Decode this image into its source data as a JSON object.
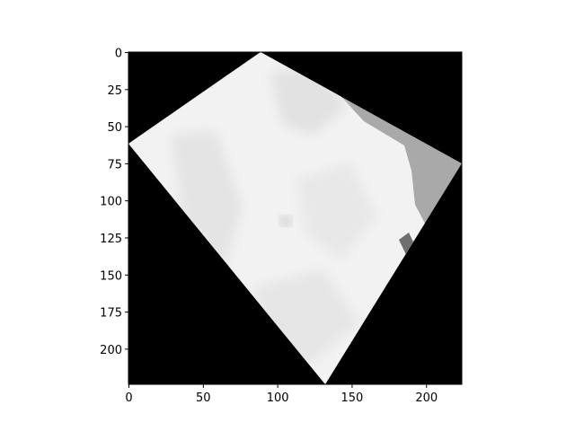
{
  "chart_data": {
    "type": "heatmap",
    "title": "",
    "xlabel": "",
    "ylabel": "",
    "xlim": [
      0,
      224
    ],
    "ylim": [
      224,
      0
    ],
    "grid": false,
    "colormap": "gray",
    "x_ticks": [
      0,
      50,
      100,
      150,
      200
    ],
    "y_ticks": [
      0,
      25,
      50,
      75,
      100,
      125,
      150,
      175,
      200
    ],
    "x_tick_labels": [
      "0",
      "50",
      "100",
      "150",
      "200"
    ],
    "y_tick_labels": [
      "0",
      "25",
      "50",
      "75",
      "100",
      "125",
      "150",
      "175",
      "200"
    ],
    "image": {
      "description_free_regions": true,
      "background_value": 0,
      "rotated_patch_corners": [
        [
          90,
          0
        ],
        [
          224,
          78
        ],
        [
          132,
          224
        ],
        [
          0,
          62
        ]
      ],
      "regions": [
        {
          "kind": "light",
          "value": 0.97
        },
        {
          "kind": "gray",
          "value": 0.65
        },
        {
          "kind": "dark-gray",
          "value": 0.45
        }
      ]
    }
  }
}
